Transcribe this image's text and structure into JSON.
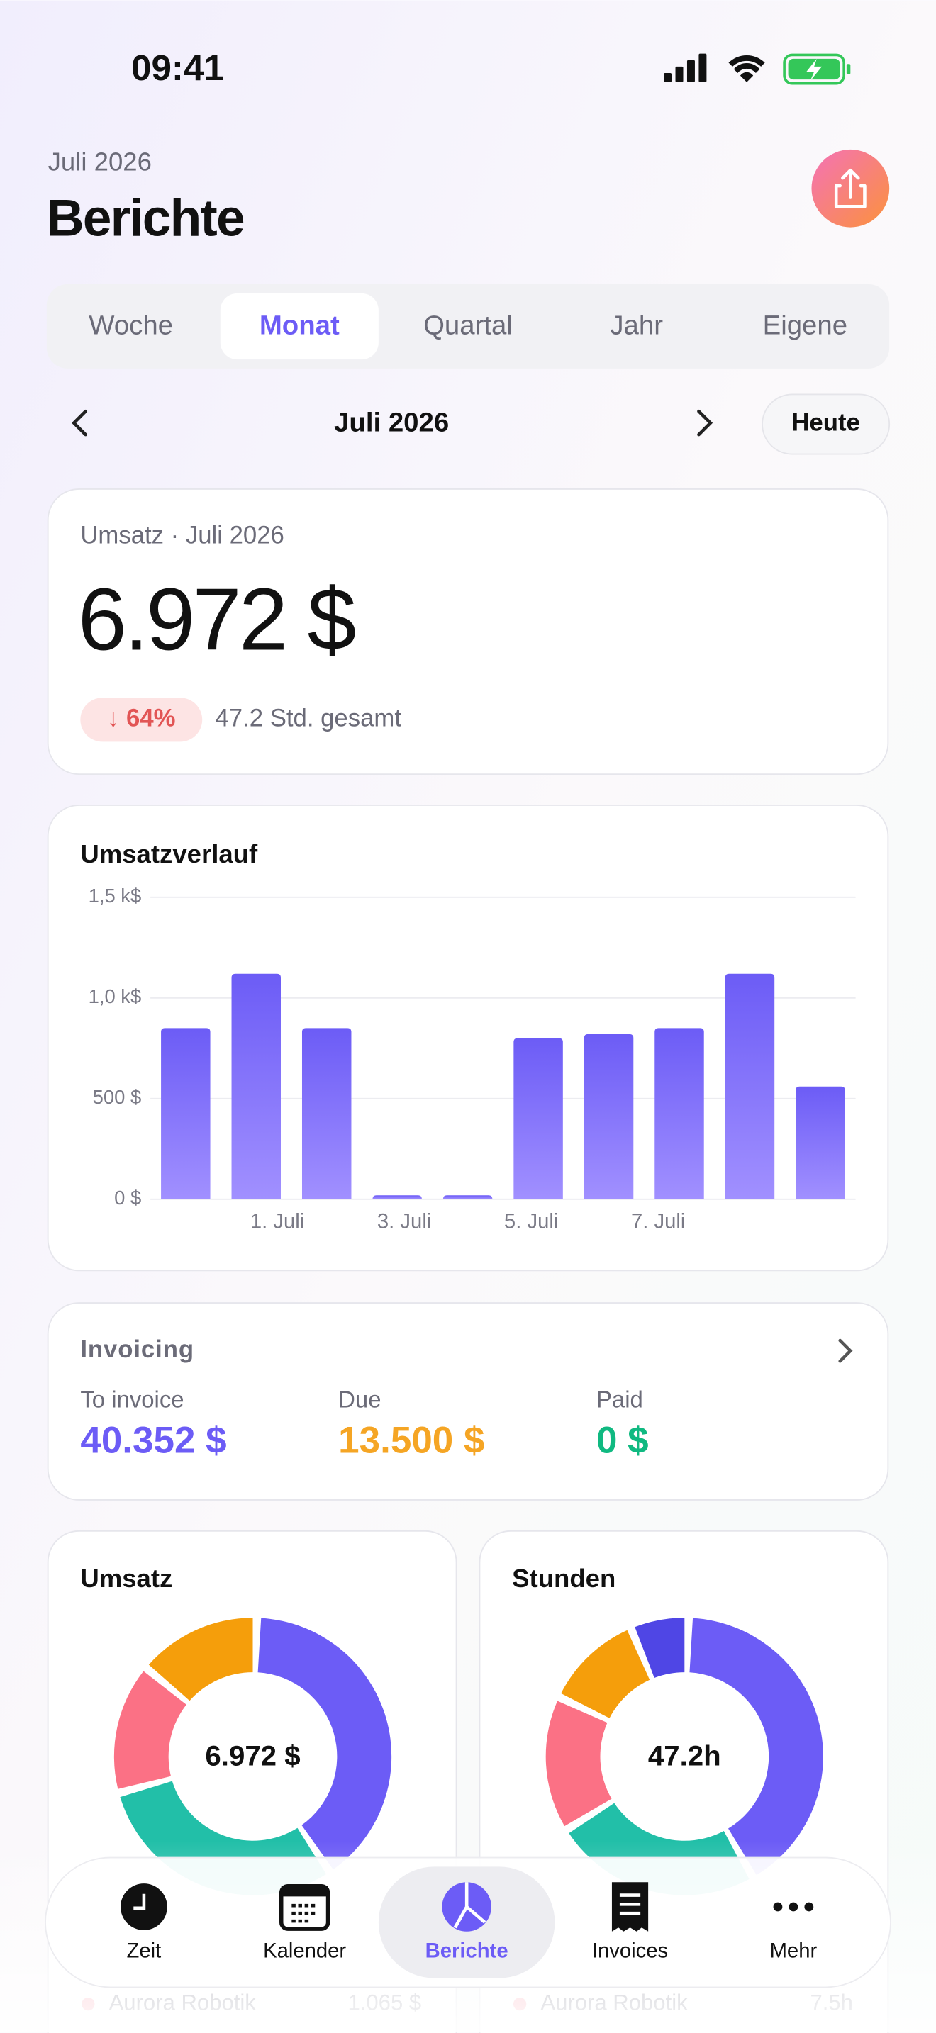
{
  "status": {
    "time": "09:41"
  },
  "header": {
    "subtitle": "Juli 2026",
    "title": "Berichte"
  },
  "tabs": {
    "items": [
      "Woche",
      "Monat",
      "Quartal",
      "Jahr",
      "Eigene"
    ],
    "selected": 1
  },
  "period": {
    "label": "Juli 2026",
    "today": "Heute"
  },
  "summary": {
    "label": "Umsatz · Juli 2026",
    "value": "6.972 $",
    "change": "↓ 64%",
    "hours": "47.2 Std. gesamt"
  },
  "chart_data": [
    {
      "type": "bar",
      "title": "Umsatzverlauf",
      "categories": [
        null,
        null,
        null,
        null,
        null,
        null,
        null,
        null,
        null,
        null
      ],
      "values": [
        850,
        1120,
        850,
        0,
        0,
        800,
        820,
        850,
        1120,
        560
      ],
      "color": "#6c5cf6",
      "ylim": [
        0,
        1500
      ],
      "yticks": [
        {
          "value": 0,
          "label": "0 $"
        },
        {
          "value": 500,
          "label": "500 $"
        },
        {
          "value": 1000,
          "label": "1,0 k$"
        },
        {
          "value": 1500,
          "label": "1,5 k$"
        }
      ],
      "xticks": [
        {
          "value": 1.3,
          "label": "1. Juli"
        },
        {
          "value": 3.1,
          "label": "3. Juli"
        },
        {
          "value": 4.9,
          "label": "5. Juli"
        },
        {
          "value": 6.7,
          "label": "7. Juli"
        }
      ],
      "grid": true
    },
    {
      "type": "pie",
      "title": "Umsatz",
      "center_label": "6.972 $",
      "series": [
        {
          "color": "#6c5cf6",
          "values": [
            2800
          ]
        },
        {
          "color": "#22bfa8",
          "values": [
            2100
          ]
        },
        {
          "name": "Aurora Robotik",
          "color": "#fb7185",
          "values": [
            1065
          ],
          "value_labels": [
            "1.065 $"
          ]
        },
        {
          "color": "#f59e0b",
          "values": [
            1007
          ]
        }
      ]
    },
    {
      "type": "pie",
      "title": "Stunden",
      "center_label": "47.2h",
      "series": [
        {
          "color": "#6c5cf6",
          "values": [
            19.5
          ]
        },
        {
          "color": "#22bfa8",
          "values": [
            11.5
          ]
        },
        {
          "name": "Aurora Robotik",
          "color": "#fb7185",
          "values": [
            7.5
          ],
          "value_labels": [
            "7.5h"
          ]
        },
        {
          "color": "#f59e0b",
          "values": [
            5.5
          ]
        },
        {
          "color": "#4f46e5",
          "values": [
            3.2
          ]
        }
      ]
    }
  ],
  "invoicing": {
    "title": "Invoicing",
    "items": [
      {
        "label": "To invoice",
        "value": "40.352 $",
        "color": "#6c5cf6"
      },
      {
        "label": "Due",
        "value": "13.500 $",
        "color": "#f5a524"
      },
      {
        "label": "Paid",
        "value": "0 $",
        "color": "#10b981"
      }
    ]
  },
  "nav": {
    "items": [
      "Zeit",
      "Kalender",
      "Berichte",
      "Invoices",
      "Mehr"
    ],
    "selected": 2
  }
}
